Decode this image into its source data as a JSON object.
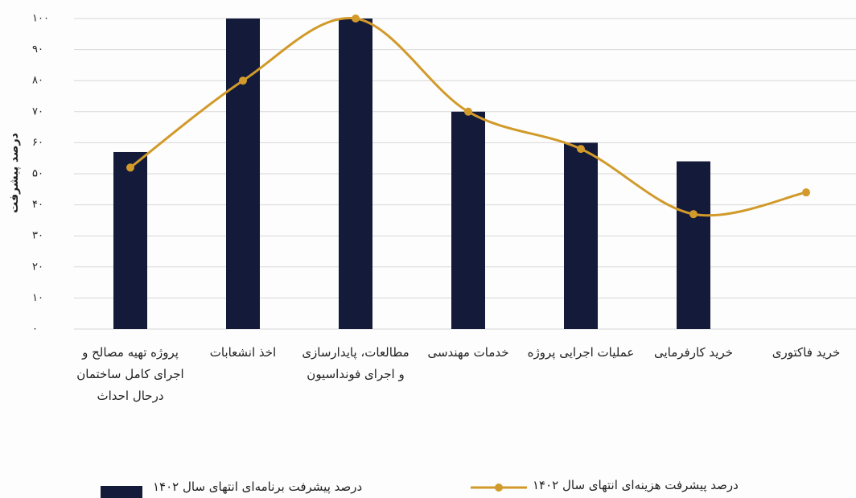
{
  "chart_data": {
    "type": "bar_line",
    "y_label": "درصد پیشرفت",
    "categories": [
      "پروژه تهیه مصالح و اجرای کامل ساختمان درحال احداث",
      "اخذ انشعابات",
      "مطالعات، پایدارسازی و اجرای فونداسیون",
      "خدمات مهندسی",
      "عملیات اجرایی پروژه",
      "خرید کارفرمایی",
      "خرید فاکتوری"
    ],
    "series": [
      {
        "name": "درصد پیشرفت برنامه‌ای انتهای سال ۱۴۰۲",
        "type": "bar",
        "color": "#141a3a",
        "values": [
          57,
          100,
          100,
          70,
          60,
          54,
          null
        ]
      },
      {
        "name": "درصد پیشرفت هزینه‌ای انتهای سال ۱۴۰۲",
        "type": "line",
        "color": "#d19a2a",
        "values": [
          52,
          80,
          100,
          70,
          58,
          37,
          44
        ]
      }
    ],
    "ylim": [
      0,
      100
    ],
    "yticks": [
      {
        "value": 0,
        "label": "۰"
      },
      {
        "value": 10,
        "label": "۱۰"
      },
      {
        "value": 20,
        "label": "۲۰"
      },
      {
        "value": 30,
        "label": "۳۰"
      },
      {
        "value": 40,
        "label": "۴۰"
      },
      {
        "value": 50,
        "label": "۵۰"
      },
      {
        "value": 60,
        "label": "۶۰"
      },
      {
        "value": 70,
        "label": "۷۰"
      },
      {
        "value": 80,
        "label": "۸۰"
      },
      {
        "value": 90,
        "label": "۹۰"
      },
      {
        "value": 100,
        "label": "۱۰۰"
      }
    ],
    "grid": true
  }
}
